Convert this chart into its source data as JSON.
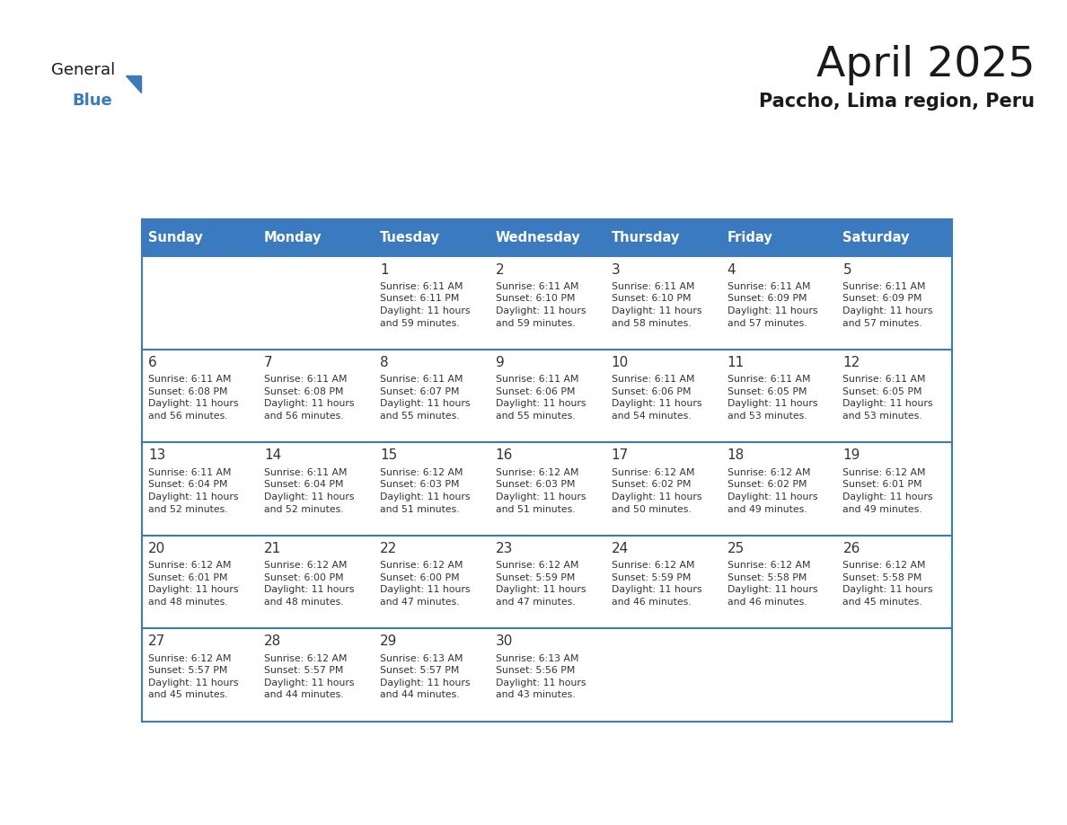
{
  "title": "April 2025",
  "subtitle": "Paccho, Lima region, Peru",
  "header_bg": "#3a7abf",
  "header_text_color": "#ffffff",
  "cell_bg_white": "#ffffff",
  "border_color": "#3a7abf",
  "text_color": "#333333",
  "days_of_week": [
    "Sunday",
    "Monday",
    "Tuesday",
    "Wednesday",
    "Thursday",
    "Friday",
    "Saturday"
  ],
  "calendar_data": [
    [
      "",
      "",
      "1\nSunrise: 6:11 AM\nSunset: 6:11 PM\nDaylight: 11 hours\nand 59 minutes.",
      "2\nSunrise: 6:11 AM\nSunset: 6:10 PM\nDaylight: 11 hours\nand 59 minutes.",
      "3\nSunrise: 6:11 AM\nSunset: 6:10 PM\nDaylight: 11 hours\nand 58 minutes.",
      "4\nSunrise: 6:11 AM\nSunset: 6:09 PM\nDaylight: 11 hours\nand 57 minutes.",
      "5\nSunrise: 6:11 AM\nSunset: 6:09 PM\nDaylight: 11 hours\nand 57 minutes."
    ],
    [
      "6\nSunrise: 6:11 AM\nSunset: 6:08 PM\nDaylight: 11 hours\nand 56 minutes.",
      "7\nSunrise: 6:11 AM\nSunset: 6:08 PM\nDaylight: 11 hours\nand 56 minutes.",
      "8\nSunrise: 6:11 AM\nSunset: 6:07 PM\nDaylight: 11 hours\nand 55 minutes.",
      "9\nSunrise: 6:11 AM\nSunset: 6:06 PM\nDaylight: 11 hours\nand 55 minutes.",
      "10\nSunrise: 6:11 AM\nSunset: 6:06 PM\nDaylight: 11 hours\nand 54 minutes.",
      "11\nSunrise: 6:11 AM\nSunset: 6:05 PM\nDaylight: 11 hours\nand 53 minutes.",
      "12\nSunrise: 6:11 AM\nSunset: 6:05 PM\nDaylight: 11 hours\nand 53 minutes."
    ],
    [
      "13\nSunrise: 6:11 AM\nSunset: 6:04 PM\nDaylight: 11 hours\nand 52 minutes.",
      "14\nSunrise: 6:11 AM\nSunset: 6:04 PM\nDaylight: 11 hours\nand 52 minutes.",
      "15\nSunrise: 6:12 AM\nSunset: 6:03 PM\nDaylight: 11 hours\nand 51 minutes.",
      "16\nSunrise: 6:12 AM\nSunset: 6:03 PM\nDaylight: 11 hours\nand 51 minutes.",
      "17\nSunrise: 6:12 AM\nSunset: 6:02 PM\nDaylight: 11 hours\nand 50 minutes.",
      "18\nSunrise: 6:12 AM\nSunset: 6:02 PM\nDaylight: 11 hours\nand 49 minutes.",
      "19\nSunrise: 6:12 AM\nSunset: 6:01 PM\nDaylight: 11 hours\nand 49 minutes."
    ],
    [
      "20\nSunrise: 6:12 AM\nSunset: 6:01 PM\nDaylight: 11 hours\nand 48 minutes.",
      "21\nSunrise: 6:12 AM\nSunset: 6:00 PM\nDaylight: 11 hours\nand 48 minutes.",
      "22\nSunrise: 6:12 AM\nSunset: 6:00 PM\nDaylight: 11 hours\nand 47 minutes.",
      "23\nSunrise: 6:12 AM\nSunset: 5:59 PM\nDaylight: 11 hours\nand 47 minutes.",
      "24\nSunrise: 6:12 AM\nSunset: 5:59 PM\nDaylight: 11 hours\nand 46 minutes.",
      "25\nSunrise: 6:12 AM\nSunset: 5:58 PM\nDaylight: 11 hours\nand 46 minutes.",
      "26\nSunrise: 6:12 AM\nSunset: 5:58 PM\nDaylight: 11 hours\nand 45 minutes."
    ],
    [
      "27\nSunrise: 6:12 AM\nSunset: 5:57 PM\nDaylight: 11 hours\nand 45 minutes.",
      "28\nSunrise: 6:12 AM\nSunset: 5:57 PM\nDaylight: 11 hours\nand 44 minutes.",
      "29\nSunrise: 6:13 AM\nSunset: 5:57 PM\nDaylight: 11 hours\nand 44 minutes.",
      "30\nSunrise: 6:13 AM\nSunset: 5:56 PM\nDaylight: 11 hours\nand 43 minutes.",
      "",
      "",
      ""
    ]
  ],
  "logo_text_general": "General",
  "logo_text_blue": "Blue",
  "logo_color_general": "#1a1a1a",
  "logo_color_blue": "#3a7abf",
  "logo_triangle_color": "#3a7abf"
}
